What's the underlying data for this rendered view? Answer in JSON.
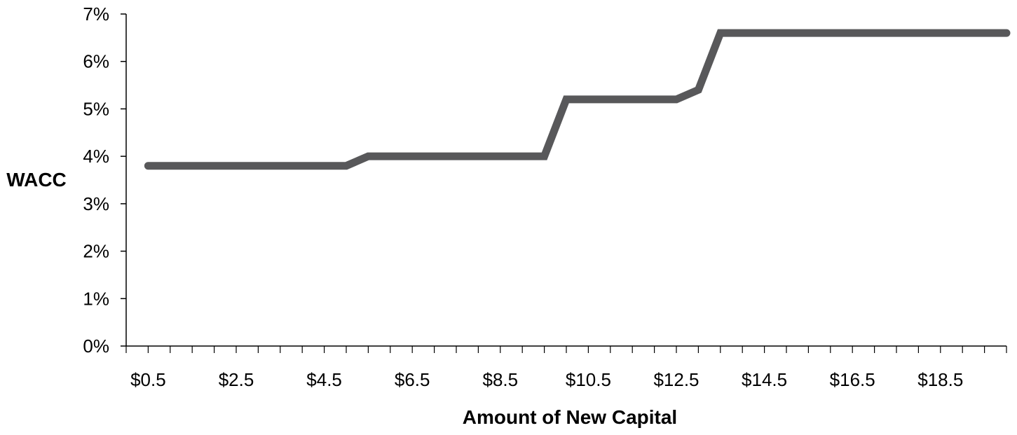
{
  "chart_data": {
    "type": "line",
    "title": "",
    "xlabel": "Amount of New Capital",
    "ylabel": "WACC",
    "ylim": [
      0,
      7
    ],
    "y_ticks": [
      "0%",
      "1%",
      "2%",
      "3%",
      "4%",
      "5%",
      "6%",
      "7%"
    ],
    "x_tick_labels": [
      "$0.5",
      "$2.5",
      "$4.5",
      "$6.5",
      "$8.5",
      "$10.5",
      "$12.5",
      "$14.5",
      "$16.5",
      "$18.5"
    ],
    "x_tick_values": [
      0.5,
      2.5,
      4.5,
      6.5,
      8.5,
      10.5,
      12.5,
      14.5,
      16.5,
      18.5
    ],
    "xlim": [
      0.0,
      20.0
    ],
    "x_minor_step": 0.5,
    "legend": "none",
    "grid": false,
    "series": [
      {
        "color": "#58585a",
        "points": [
          [
            0.5,
            3.8
          ],
          [
            5.0,
            3.8
          ],
          [
            5.5,
            4.0
          ],
          [
            9.5,
            4.0
          ],
          [
            10.0,
            5.2
          ],
          [
            12.5,
            5.2
          ],
          [
            13.0,
            5.4
          ],
          [
            13.5,
            6.6
          ],
          [
            20.0,
            6.6
          ]
        ]
      }
    ]
  }
}
